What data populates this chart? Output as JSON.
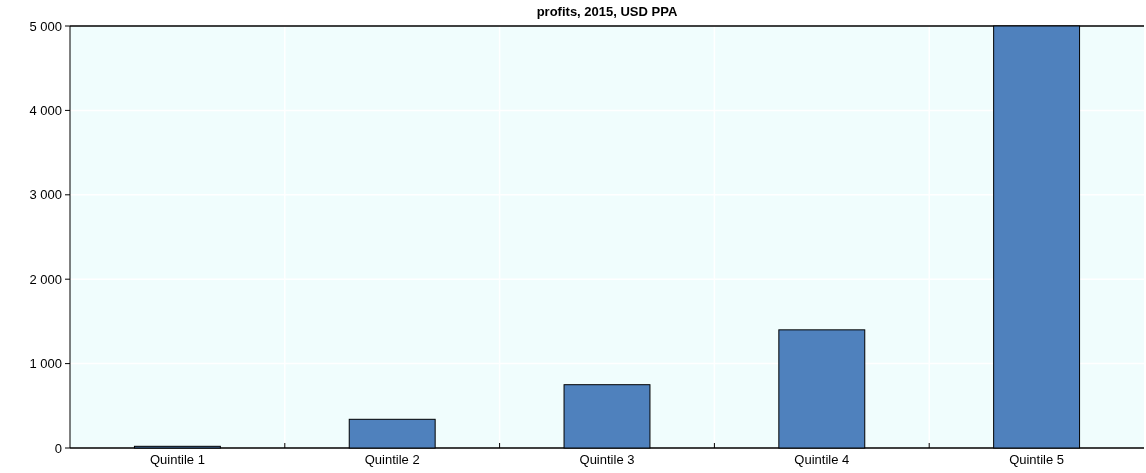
{
  "chart_data": {
    "type": "bar",
    "title": "profits, 2015, USD PPA",
    "categories": [
      "Quintile 1",
      "Quintile 2",
      "Quintile 3",
      "Quintile 4",
      "Quintile 5"
    ],
    "values": [
      20,
      340,
      750,
      1400,
      5000
    ],
    "color": "#4f81bd",
    "ylim": [
      0,
      5000
    ],
    "yticks": [
      {
        "value": 0,
        "label": "0"
      },
      {
        "value": 1000,
        "label": "1 000"
      },
      {
        "value": 2000,
        "label": "2 000"
      },
      {
        "value": 3000,
        "label": "3 000"
      },
      {
        "value": 4000,
        "label": "4 000"
      },
      {
        "value": 5000,
        "label": "5 000"
      }
    ],
    "grid": true
  }
}
